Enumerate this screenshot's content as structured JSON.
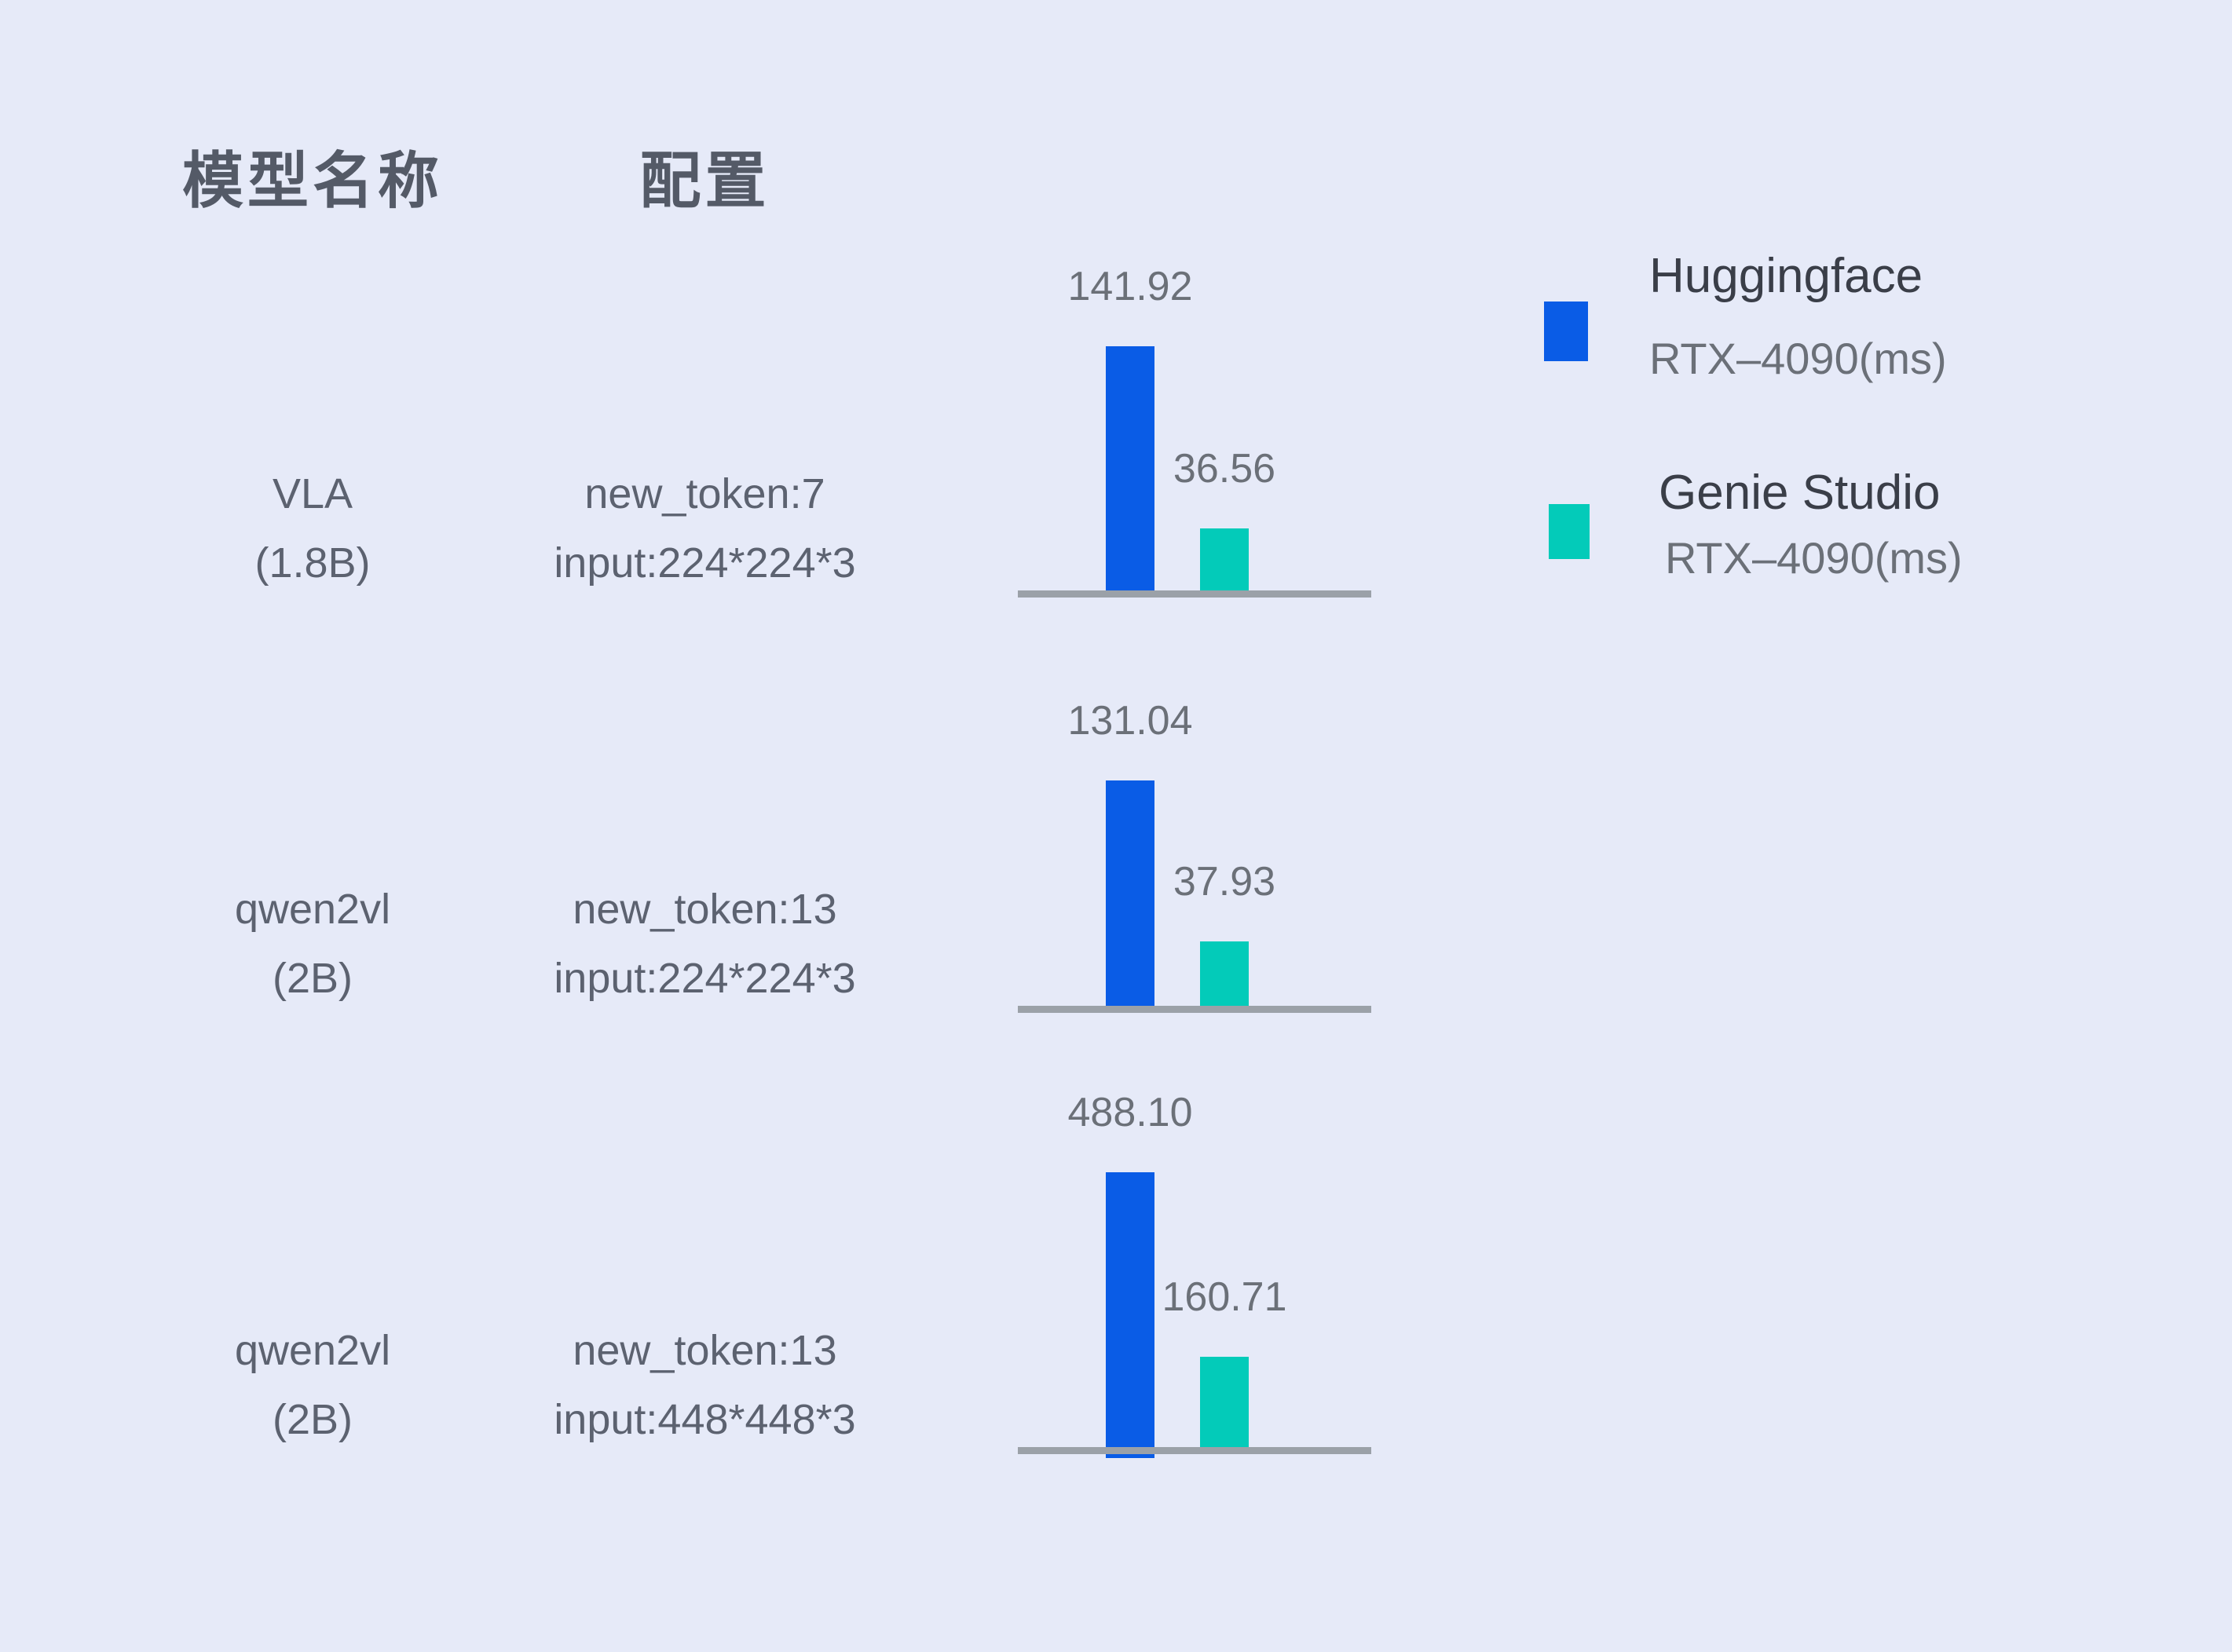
{
  "page": {
    "background": "#e6eaf8"
  },
  "header": {
    "col_model": "模型名称",
    "col_config": "配置"
  },
  "legend": {
    "items": [
      {
        "name": "Huggingface",
        "device": "RTX–4090(ms)",
        "color": "#0a5ce6"
      },
      {
        "name": "Genie Studio",
        "device": "RTX–4090(ms)",
        "color": "#03cbb9"
      }
    ]
  },
  "colors": {
    "huggingface_blue": "#0a5ce6",
    "genie_teal": "#03cbb9",
    "axis_gray": "#9ba1a8",
    "value_text": "#6b7078",
    "body_text": "#5c6270",
    "header_text": "#545a67"
  },
  "chart_data": {
    "type": "bar",
    "unit": "ms",
    "grid": false,
    "legend_position": "top-right",
    "series": [
      {
        "name": "Huggingface RTX–4090(ms)",
        "color": "#0a5ce6"
      },
      {
        "name": "Genie Studio RTX–4090(ms)",
        "color": "#03cbb9"
      }
    ],
    "rows": [
      {
        "model": "VLA",
        "model_size": "(1.8B)",
        "config_line1": "new_token:7",
        "config_line2": "input:224*224*3",
        "hf_ms": 141.92,
        "gs_ms": 36.56,
        "hf_label": "141.92",
        "gs_label": "36.56"
      },
      {
        "model": "qwen2vl",
        "model_size": "(2B)",
        "config_line1": "new_token:13",
        "config_line2": "input:224*224*3",
        "hf_ms": 131.04,
        "gs_ms": 37.93,
        "hf_label": "131.04",
        "gs_label": "37.93"
      },
      {
        "model": "qwen2vl",
        "model_size": "(2B)",
        "config_line1": "new_token:13",
        "config_line2": "input:448*448*3",
        "hf_ms": 488.1,
        "gs_ms": 160.71,
        "hf_label": "488.10",
        "gs_label": "160.71"
      }
    ]
  }
}
